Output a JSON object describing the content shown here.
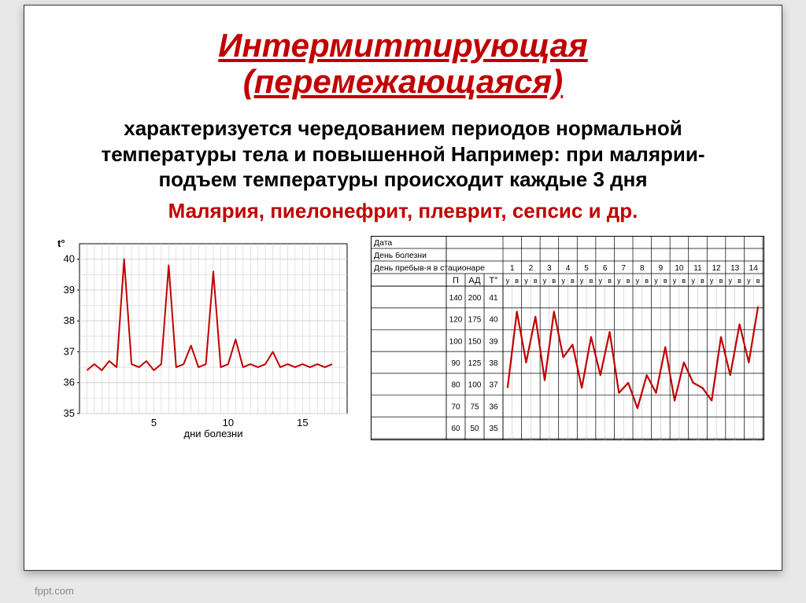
{
  "title_line1": "Интермиттирующая",
  "title_line2": "(перемежающаяся)",
  "body_text": "характеризуется чередованием периодов нормальной температуры тела и повышенной Например: при малярии- подъем температуры происходит каждые 3 дня",
  "examples": "Малярия, пиелонефрит, плеврит, сепсис и др.",
  "footer": "fppt.com",
  "colors": {
    "title": "#c00000",
    "body": "#000000",
    "examples": "#c00000",
    "line": "#c00000",
    "grid": "#d6cfcf",
    "axis": "#000000",
    "chart_bg": "#ffffff"
  },
  "chart_left": {
    "type": "line",
    "ylabel": "t°",
    "xlabel": "дни болезни",
    "x_ticks": [
      5,
      10,
      15
    ],
    "y_ticks": [
      35,
      36,
      37,
      38,
      39,
      40
    ],
    "ylim": [
      35,
      40.5
    ],
    "xlim": [
      0,
      18
    ],
    "line_width": 2,
    "grid_color": "#d6cfcf",
    "line_color": "#c00000",
    "data": [
      [
        0.5,
        36.4
      ],
      [
        1,
        36.6
      ],
      [
        1.5,
        36.4
      ],
      [
        2,
        36.7
      ],
      [
        2.5,
        36.5
      ],
      [
        3,
        40.0
      ],
      [
        3.5,
        36.6
      ],
      [
        4,
        36.5
      ],
      [
        4.5,
        36.7
      ],
      [
        5,
        36.4
      ],
      [
        5.5,
        36.6
      ],
      [
        6,
        39.8
      ],
      [
        6.5,
        36.5
      ],
      [
        7,
        36.6
      ],
      [
        7.5,
        37.2
      ],
      [
        8,
        36.5
      ],
      [
        8.5,
        36.6
      ],
      [
        9,
        39.6
      ],
      [
        9.5,
        36.5
      ],
      [
        10,
        36.6
      ],
      [
        10.5,
        37.4
      ],
      [
        11,
        36.5
      ],
      [
        11.5,
        36.6
      ],
      [
        12,
        36.5
      ],
      [
        12.5,
        36.6
      ],
      [
        13,
        37.0
      ],
      [
        13.5,
        36.5
      ],
      [
        14,
        36.6
      ],
      [
        14.5,
        36.5
      ],
      [
        15,
        36.6
      ],
      [
        15.5,
        36.5
      ],
      [
        16,
        36.6
      ],
      [
        16.5,
        36.5
      ],
      [
        17,
        36.6
      ]
    ]
  },
  "chart_right": {
    "type": "line-table",
    "header_rows": [
      "Дата",
      "День болезни",
      "День пребыв-я в стационаре"
    ],
    "col_subheaders": [
      "П",
      "АД",
      "Т°"
    ],
    "uv_label_u": "у",
    "uv_label_v": "в",
    "days": [
      1,
      2,
      3,
      4,
      5,
      6,
      7,
      8,
      9,
      10,
      11,
      12,
      13,
      14
    ],
    "y_rows": [
      {
        "p": "140",
        "ad": "200",
        "t": "41"
      },
      {
        "p": "120",
        "ad": "175",
        "t": "40"
      },
      {
        "p": "100",
        "ad": "150",
        "t": "39"
      },
      {
        "p": "90",
        "ad": "125",
        "t": "38"
      },
      {
        "p": "80",
        "ad": "100",
        "t": "37"
      },
      {
        "p": "70",
        "ad": "75",
        "t": "36"
      },
      {
        "p": "60",
        "ad": "50",
        "t": "35"
      }
    ],
    "t_lim": [
      35,
      41
    ],
    "line_color": "#c00000",
    "line_width": 2.2,
    "grid_color": "#c8c0c0",
    "data_t": [
      37.0,
      40.0,
      38.0,
      39.8,
      37.3,
      40.0,
      38.2,
      38.7,
      37.0,
      39.0,
      37.5,
      39.2,
      36.8,
      37.2,
      36.2,
      37.5,
      36.8,
      38.6,
      36.5,
      38.0,
      37.2,
      37.0,
      36.5,
      39.0,
      37.5,
      39.5,
      38.0,
      40.2
    ]
  }
}
